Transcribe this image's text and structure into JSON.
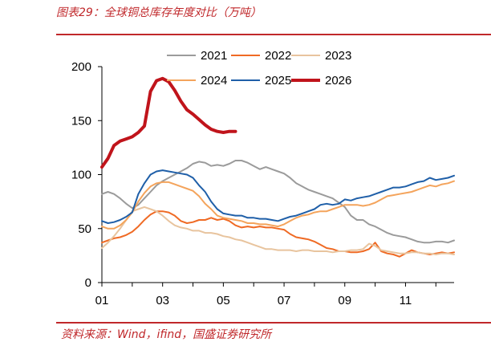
{
  "header": {
    "title": "图表29：全球铜总库存年度对比（万吨）"
  },
  "footer": {
    "source": "资料来源：Wind，ifind，国盛证券研究所"
  },
  "colors": {
    "brand_red": "#c0282b",
    "s2021": "#9b9b9b",
    "s2022": "#ef6a24",
    "s2023": "#e8c49e",
    "s2024": "#f4a45c",
    "s2025": "#1f5fa8",
    "s2026": "#c0141b"
  },
  "chart_data": {
    "type": "line",
    "title": "全球铜总库存年度对比（万吨）",
    "xlabel": "",
    "ylabel": "",
    "xlim": [
      1,
      12.6
    ],
    "ylim": [
      0,
      200
    ],
    "x_ticks": [
      1,
      3,
      5,
      7,
      9,
      11
    ],
    "x_tick_labels": [
      "01",
      "03",
      "05",
      "07",
      "09",
      "11"
    ],
    "y_ticks": [
      0,
      50,
      100,
      150,
      200
    ],
    "y_tick_labels": [
      "0",
      "50",
      "100",
      "150",
      "200"
    ],
    "grid": false,
    "legend_position": "top",
    "series": [
      {
        "name": "2021",
        "color": "#9b9b9b",
        "width": 2,
        "x": [
          1.0,
          1.2,
          1.4,
          1.6,
          1.8,
          2.0,
          2.2,
          2.4,
          2.6,
          2.8,
          3.0,
          3.2,
          3.4,
          3.6,
          3.8,
          4.0,
          4.2,
          4.4,
          4.6,
          4.8,
          5.0,
          5.2,
          5.4,
          5.6,
          5.8,
          6.0,
          6.2,
          6.4,
          6.6,
          6.8,
          7.0,
          7.2,
          7.4,
          7.6,
          7.8,
          8.0,
          8.2,
          8.4,
          8.6,
          8.8,
          9.0,
          9.2,
          9.4,
          9.6,
          9.8,
          10.0,
          10.2,
          10.4,
          10.6,
          10.8,
          11.0,
          11.2,
          11.4,
          11.6,
          11.8,
          12.0,
          12.2,
          12.4,
          12.6
        ],
        "y": [
          82,
          84,
          82,
          78,
          73,
          69,
          72,
          78,
          84,
          90,
          94,
          97,
          100,
          103,
          106,
          110,
          112,
          111,
          108,
          109,
          108,
          110,
          113,
          113,
          111,
          108,
          105,
          107,
          105,
          103,
          101,
          97,
          92,
          89,
          86,
          84,
          82,
          80,
          78,
          74,
          70,
          62,
          58,
          58,
          54,
          52,
          49,
          46,
          44,
          43,
          42,
          40,
          38,
          37,
          37,
          38,
          38,
          37,
          39
        ]
      },
      {
        "name": "2022",
        "color": "#ef6a24",
        "width": 2,
        "x": [
          1.0,
          1.2,
          1.4,
          1.6,
          1.8,
          2.0,
          2.2,
          2.4,
          2.6,
          2.8,
          3.0,
          3.2,
          3.4,
          3.6,
          3.8,
          4.0,
          4.2,
          4.4,
          4.6,
          4.8,
          5.0,
          5.2,
          5.4,
          5.6,
          5.8,
          6.0,
          6.2,
          6.4,
          6.6,
          6.8,
          7.0,
          7.2,
          7.4,
          7.6,
          7.8,
          8.0,
          8.2,
          8.4,
          8.6,
          8.8,
          9.0,
          9.2,
          9.4,
          9.6,
          9.8,
          10.0,
          10.2,
          10.4,
          10.6,
          10.8,
          11.0,
          11.2,
          11.4,
          11.6,
          11.8,
          12.0,
          12.2,
          12.4,
          12.6
        ],
        "y": [
          37,
          39,
          41,
          42,
          44,
          47,
          52,
          58,
          63,
          66,
          66,
          65,
          62,
          57,
          55,
          56,
          58,
          58,
          60,
          58,
          59,
          57,
          53,
          51,
          52,
          51,
          52,
          51,
          51,
          50,
          49,
          45,
          42,
          41,
          40,
          38,
          35,
          32,
          31,
          29,
          29,
          28,
          28,
          29,
          31,
          37,
          29,
          27,
          26,
          24,
          27,
          30,
          28,
          27,
          26,
          27,
          28,
          27,
          28
        ]
      },
      {
        "name": "2023",
        "color": "#e8c49e",
        "width": 2,
        "x": [
          1.0,
          1.2,
          1.4,
          1.6,
          1.8,
          2.0,
          2.2,
          2.4,
          2.6,
          2.8,
          3.0,
          3.2,
          3.4,
          3.6,
          3.8,
          4.0,
          4.2,
          4.4,
          4.6,
          4.8,
          5.0,
          5.2,
          5.4,
          5.6,
          5.8,
          6.0,
          6.2,
          6.4,
          6.6,
          6.8,
          7.0,
          7.2,
          7.4,
          7.6,
          7.8,
          8.0,
          8.2,
          8.4,
          8.6,
          8.8,
          9.0,
          9.2,
          9.4,
          9.6,
          9.8,
          10.0,
          10.2,
          10.4,
          10.6,
          10.8,
          11.0,
          11.2,
          11.4,
          11.6,
          11.8,
          12.0,
          12.2,
          12.4,
          12.6
        ],
        "y": [
          32,
          37,
          43,
          50,
          58,
          66,
          68,
          70,
          68,
          66,
          62,
          57,
          53,
          51,
          50,
          48,
          48,
          46,
          46,
          45,
          43,
          42,
          40,
          39,
          37,
          35,
          33,
          31,
          31,
          30,
          30,
          30,
          29,
          30,
          30,
          29,
          29,
          29,
          28,
          29,
          29,
          30,
          30,
          31,
          36,
          34,
          30,
          29,
          28,
          27,
          27,
          28,
          28,
          27,
          27,
          26,
          27,
          27,
          26
        ]
      },
      {
        "name": "2024",
        "color": "#f4a45c",
        "width": 2,
        "x": [
          1.0,
          1.2,
          1.4,
          1.6,
          1.8,
          2.0,
          2.2,
          2.4,
          2.6,
          2.8,
          3.0,
          3.2,
          3.4,
          3.6,
          3.8,
          4.0,
          4.2,
          4.4,
          4.6,
          4.8,
          5.0,
          5.2,
          5.4,
          5.6,
          5.8,
          6.0,
          6.2,
          6.4,
          6.6,
          6.8,
          7.0,
          7.2,
          7.4,
          7.6,
          7.8,
          8.0,
          8.2,
          8.4,
          8.6,
          8.8,
          9.0,
          9.2,
          9.4,
          9.6,
          9.8,
          10.0,
          10.2,
          10.4,
          10.6,
          10.8,
          11.0,
          11.2,
          11.4,
          11.6,
          11.8,
          12.0,
          12.2,
          12.4,
          12.6
        ],
        "y": [
          52,
          50,
          50,
          53,
          58,
          65,
          75,
          83,
          89,
          92,
          93,
          93,
          91,
          89,
          87,
          85,
          80,
          73,
          68,
          62,
          60,
          59,
          58,
          57,
          55,
          55,
          54,
          54,
          53,
          52,
          54,
          57,
          60,
          62,
          63,
          65,
          66,
          66,
          68,
          70,
          72,
          72,
          72,
          71,
          72,
          74,
          77,
          80,
          81,
          82,
          83,
          84,
          86,
          88,
          90,
          89,
          91,
          92,
          94
        ]
      },
      {
        "name": "2025",
        "color": "#1f5fa8",
        "width": 2,
        "x": [
          1.0,
          1.2,
          1.4,
          1.6,
          1.8,
          2.0,
          2.2,
          2.4,
          2.6,
          2.8,
          3.0,
          3.2,
          3.4,
          3.6,
          3.8,
          4.0,
          4.2,
          4.4,
          4.6,
          4.8,
          5.0,
          5.2,
          5.4,
          5.6,
          5.8,
          6.0,
          6.2,
          6.4,
          6.6,
          6.8,
          7.0,
          7.2,
          7.4,
          7.6,
          7.8,
          8.0,
          8.2,
          8.4,
          8.6,
          8.8,
          9.0,
          9.2,
          9.4,
          9.6,
          9.8,
          10.0,
          10.2,
          10.4,
          10.6,
          10.8,
          11.0,
          11.2,
          11.4,
          11.6,
          11.8,
          12.0,
          12.2,
          12.4,
          12.6
        ],
        "y": [
          57,
          55,
          56,
          58,
          61,
          65,
          82,
          92,
          100,
          103,
          104,
          103,
          102,
          101,
          100,
          97,
          90,
          84,
          75,
          68,
          64,
          63,
          62,
          62,
          60,
          60,
          59,
          59,
          58,
          57,
          59,
          61,
          62,
          64,
          66,
          68,
          72,
          73,
          72,
          73,
          77,
          76,
          78,
          79,
          80,
          82,
          84,
          86,
          88,
          88,
          89,
          91,
          93,
          94,
          97,
          95,
          96,
          97,
          99
        ]
      },
      {
        "name": "2026",
        "color": "#c0141b",
        "width": 4,
        "x": [
          1.0,
          1.2,
          1.4,
          1.6,
          1.8,
          2.0,
          2.2,
          2.4,
          2.6,
          2.8,
          3.0,
          3.2,
          3.4,
          3.6,
          3.8,
          4.0,
          4.2,
          4.4,
          4.6,
          4.8,
          5.0,
          5.2,
          5.4
        ],
        "y": [
          107,
          115,
          127,
          131,
          133,
          135,
          139,
          145,
          177,
          187,
          189,
          186,
          178,
          168,
          160,
          156,
          151,
          146,
          142,
          140,
          139,
          140,
          140
        ]
      }
    ]
  }
}
